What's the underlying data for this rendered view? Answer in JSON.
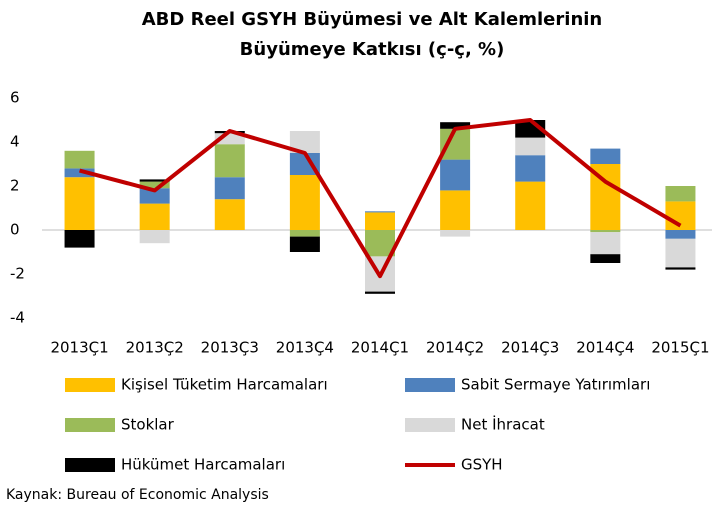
{
  "chart_data": {
    "type": "bar",
    "title": [
      "ABD Reel GSYH Büyümesi ve Alt Kalemlerinin",
      "Büyümeye Katkısı (ç-ç, %)"
    ],
    "categories": [
      "2013Ç1",
      "2013Ç2",
      "2013Ç3",
      "2013Ç4",
      "2014Ç1",
      "2014Ç2",
      "2014Ç3",
      "2014Ç4",
      "2015Ç1"
    ],
    "stacked": true,
    "series": [
      {
        "name": "Kişisel Tüketim Harcamaları",
        "color": "#ffc000",
        "values": [
          2.4,
          1.2,
          1.4,
          2.5,
          0.8,
          1.8,
          2.2,
          3.0,
          1.3
        ]
      },
      {
        "name": "Sabit Sermaye Yatırımları",
        "color": "#4f81bd",
        "values": [
          0.4,
          0.7,
          1.0,
          1.0,
          0.05,
          1.4,
          1.2,
          0.7,
          -0.4
        ]
      },
      {
        "name": "Stoklar",
        "color": "#9bbb59",
        "values": [
          0.8,
          0.3,
          1.5,
          -0.3,
          -1.2,
          1.4,
          0,
          -0.1,
          0.7
        ]
      },
      {
        "name": "Net İhracat",
        "color": "#d9d9d9",
        "values": [
          0,
          -0.6,
          0.5,
          1.0,
          -1.6,
          -0.3,
          0.8,
          -1.0,
          -1.3
        ]
      },
      {
        "name": "Hükümet Harcamaları",
        "color": "#000000",
        "values": [
          -0.8,
          0.1,
          0.1,
          -0.7,
          -0.1,
          0.3,
          0.8,
          -0.4,
          -0.1
        ]
      },
      {
        "name": "GSYH",
        "color": "#c00000",
        "type": "line",
        "values": [
          2.7,
          1.8,
          4.5,
          3.5,
          -2.1,
          4.6,
          5.0,
          2.2,
          0.2
        ]
      }
    ],
    "ylim": [
      -4,
      6
    ],
    "yticks": [
      -4,
      -2,
      0,
      2,
      4,
      6
    ],
    "grid": false,
    "source": "Kaynak: Bureau of Economic Analysis"
  }
}
